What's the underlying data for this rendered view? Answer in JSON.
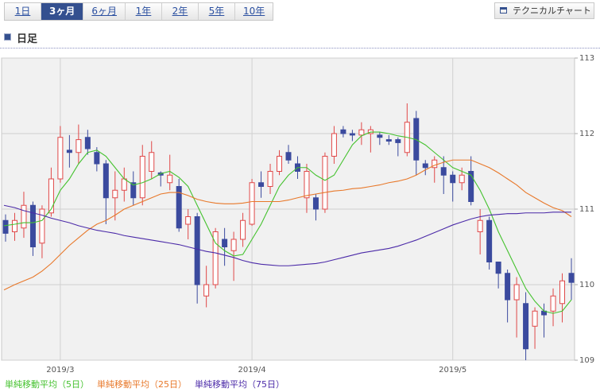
{
  "toolbar": {
    "tabs": [
      "1日",
      "3ヶ月",
      "6ヶ月",
      "1年",
      "2年",
      "5年",
      "10年"
    ],
    "active": 1,
    "button": "テクニカルチャート"
  },
  "section_title": "日足",
  "chart_data": {
    "type": "candlestick",
    "categories": [
      null,
      null,
      null,
      null,
      null,
      null,
      "2019/3",
      null,
      null,
      null,
      null,
      null,
      null,
      null,
      null,
      null,
      null,
      null,
      null,
      null,
      null,
      null,
      null,
      null,
      null,
      null,
      null,
      "2019/4",
      null,
      null,
      null,
      null,
      null,
      null,
      null,
      null,
      null,
      null,
      null,
      null,
      null,
      null,
      null,
      null,
      null,
      null,
      null,
      null,
      null,
      "2019/5",
      null,
      null,
      null,
      null,
      null,
      null,
      null,
      null,
      null,
      null,
      null,
      null,
      null
    ],
    "open": [
      110.85,
      110.7,
      110.75,
      111.05,
      110.55,
      110.95,
      111.4,
      111.78,
      111.75,
      111.95,
      111.75,
      111.6,
      111.15,
      111.25,
      111.35,
      111.15,
      111.5,
      111.48,
      111.35,
      111.3,
      110.8,
      110.9,
      109.85,
      110.0,
      110.6,
      110.45,
      110.6,
      110.8,
      111.35,
      111.3,
      111.5,
      111.75,
      111.6,
      111.15,
      111.15,
      111.0,
      111.7,
      112.05,
      112.0,
      111.98,
      112.0,
      111.98,
      111.92,
      111.92,
      111.75,
      112.2,
      111.6,
      111.55,
      111.55,
      111.45,
      111.35,
      111.5,
      110.7,
      110.85,
      110.3,
      110.15,
      109.8,
      109.75,
      109.45,
      109.65,
      109.65,
      109.75,
      110.15
    ],
    "high": [
      110.93,
      110.95,
      111.23,
      111.1,
      111.05,
      111.55,
      112.1,
      111.98,
      112.12,
      112.05,
      111.82,
      111.65,
      111.5,
      111.55,
      111.5,
      111.85,
      111.9,
      111.5,
      111.72,
      111.4,
      111.0,
      110.95,
      110.25,
      110.75,
      110.75,
      110.7,
      110.95,
      111.4,
      111.5,
      111.6,
      111.78,
      111.85,
      111.7,
      111.6,
      111.2,
      111.75,
      112.1,
      112.1,
      112.05,
      112.15,
      112.1,
      112.02,
      111.98,
      111.95,
      112.4,
      112.3,
      111.65,
      111.7,
      111.7,
      111.5,
      111.55,
      111.7,
      111.0,
      110.9,
      110.3,
      110.2,
      110.1,
      109.9,
      109.7,
      109.75,
      109.95,
      110.15,
      110.35
    ],
    "low": [
      110.57,
      110.58,
      110.62,
      110.38,
      110.35,
      110.9,
      111.35,
      111.55,
      111.6,
      111.72,
      111.5,
      110.8,
      110.85,
      111.1,
      111.05,
      111.05,
      111.4,
      111.3,
      111.25,
      110.7,
      110.6,
      109.75,
      109.7,
      109.95,
      110.25,
      110.05,
      110.5,
      110.78,
      111.15,
      111.2,
      111.45,
      111.6,
      111.4,
      110.95,
      110.85,
      110.95,
      111.6,
      111.95,
      111.9,
      111.85,
      111.75,
      111.85,
      111.85,
      111.7,
      111.7,
      111.45,
      111.45,
      111.35,
      111.2,
      111.1,
      111.25,
      111.05,
      110.4,
      110.2,
      109.95,
      109.5,
      109.3,
      109.0,
      109.15,
      109.3,
      109.45,
      109.5,
      109.8
    ],
    "close": [
      110.68,
      110.85,
      111.05,
      110.5,
      111.0,
      111.4,
      111.95,
      111.75,
      111.92,
      111.8,
      111.6,
      111.15,
      111.25,
      111.4,
      111.15,
      111.7,
      111.75,
      111.45,
      111.45,
      110.75,
      110.9,
      110.0,
      110.0,
      110.7,
      110.5,
      110.6,
      110.85,
      111.35,
      111.3,
      111.5,
      111.7,
      111.65,
      111.5,
      111.5,
      111.0,
      111.7,
      112.0,
      112.0,
      111.98,
      112.05,
      112.05,
      111.95,
      111.9,
      111.88,
      112.15,
      111.65,
      111.55,
      111.65,
      111.45,
      111.35,
      111.45,
      111.1,
      110.85,
      110.3,
      110.15,
      109.8,
      110.0,
      109.15,
      109.65,
      109.6,
      109.85,
      110.05,
      110.03
    ],
    "up_color": "#e04848",
    "down_color": "#3b4a9e",
    "moving_averages": [
      {
        "name": "単純移動平均（5日）",
        "color": "#44c22e",
        "values": [
          110.78,
          110.8,
          110.82,
          110.82,
          110.85,
          111.0,
          111.25,
          111.4,
          111.6,
          111.75,
          111.78,
          111.7,
          111.55,
          111.4,
          111.32,
          111.35,
          111.4,
          111.47,
          111.5,
          111.42,
          111.3,
          111.05,
          110.8,
          110.55,
          110.45,
          110.38,
          110.4,
          110.6,
          110.8,
          111.05,
          111.3,
          111.45,
          111.55,
          111.55,
          111.45,
          111.38,
          111.45,
          111.65,
          111.85,
          111.97,
          112.02,
          112.02,
          112.0,
          111.97,
          111.95,
          111.92,
          111.85,
          111.75,
          111.65,
          111.55,
          111.5,
          111.45,
          111.25,
          111.0,
          110.7,
          110.45,
          110.2,
          109.95,
          109.78,
          109.65,
          109.62,
          109.65,
          109.8
        ]
      },
      {
        "name": "単純移動平均（25日）",
        "color": "#e8782a",
        "values": [
          109.93,
          110.0,
          110.05,
          110.1,
          110.18,
          110.28,
          110.4,
          110.52,
          110.62,
          110.72,
          110.8,
          110.85,
          110.92,
          111.0,
          111.05,
          111.1,
          111.15,
          111.2,
          111.22,
          111.22,
          111.18,
          111.13,
          111.1,
          111.08,
          111.07,
          111.07,
          111.08,
          111.1,
          111.1,
          111.1,
          111.1,
          111.12,
          111.15,
          111.18,
          111.2,
          111.22,
          111.24,
          111.25,
          111.27,
          111.28,
          111.3,
          111.32,
          111.35,
          111.37,
          111.4,
          111.45,
          111.52,
          111.58,
          111.62,
          111.65,
          111.65,
          111.65,
          111.6,
          111.55,
          111.48,
          111.4,
          111.32,
          111.22,
          111.15,
          111.08,
          111.02,
          110.98,
          110.9
        ]
      },
      {
        "name": "単純移動平均（75日）",
        "color": "#4b2aa8",
        "values": [
          111.05,
          111.02,
          110.98,
          110.95,
          110.92,
          110.88,
          110.85,
          110.82,
          110.78,
          110.75,
          110.72,
          110.7,
          110.68,
          110.65,
          110.63,
          110.61,
          110.59,
          110.57,
          110.55,
          110.53,
          110.5,
          110.47,
          110.44,
          110.42,
          110.39,
          110.36,
          110.32,
          110.29,
          110.27,
          110.26,
          110.25,
          110.25,
          110.26,
          110.27,
          110.28,
          110.3,
          110.33,
          110.36,
          110.39,
          110.42,
          110.44,
          110.46,
          110.48,
          110.51,
          110.55,
          110.59,
          110.64,
          110.69,
          110.74,
          110.79,
          110.83,
          110.87,
          110.9,
          110.92,
          110.93,
          110.94,
          110.94,
          110.95,
          110.95,
          110.95,
          110.96,
          110.96,
          110.96
        ]
      }
    ],
    "ylim": [
      109,
      113
    ],
    "yticks": [
      109,
      110,
      111,
      112,
      113
    ],
    "grid": true
  }
}
